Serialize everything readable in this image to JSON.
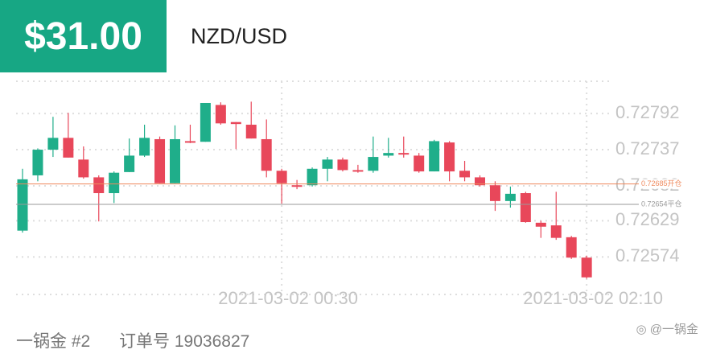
{
  "header": {
    "price": "$31.00",
    "symbol": "NZD/USD"
  },
  "footer": {
    "account": "一锅金 #2",
    "order": "订单号 19036827"
  },
  "watermark": "@一锅金",
  "chart_data": {
    "type": "candlestick",
    "categories": [
      null,
      null,
      null,
      null,
      null,
      null,
      null,
      null,
      null,
      null,
      null,
      null,
      null,
      null,
      null,
      null,
      null,
      "2021-03-02 00:30",
      null,
      null,
      null,
      null,
      null,
      null,
      null,
      null,
      null,
      null,
      null,
      null,
      null,
      null,
      null,
      null,
      null,
      null,
      null,
      "2021-03-02 02:10"
    ],
    "open": [
      0.72614,
      0.72698,
      0.72737,
      0.72755,
      0.72722,
      0.72695,
      0.72671,
      0.72703,
      0.72728,
      0.72753,
      0.72686,
      0.7275,
      0.72749,
      0.72805,
      0.72779,
      0.72775,
      0.72753,
      0.72705,
      0.72683,
      0.72683,
      0.72708,
      0.72722,
      0.72706,
      0.72705,
      0.72728,
      0.72732,
      0.72728,
      0.72704,
      0.72748,
      0.72705,
      0.72695,
      0.72683,
      0.72659,
      0.72671,
      0.72626,
      0.72622,
      0.72604,
      0.72573
    ],
    "high": [
      0.72708,
      0.72739,
      0.72787,
      0.72793,
      0.72742,
      0.72698,
      0.72704,
      0.72754,
      0.72775,
      0.72757,
      0.72774,
      0.72775,
      0.72808,
      0.72809,
      0.72779,
      0.7281,
      0.72783,
      0.72708,
      0.72691,
      0.7271,
      0.72726,
      0.72725,
      0.72714,
      0.72757,
      0.72755,
      0.72757,
      0.72732,
      0.72752,
      0.7275,
      0.7272,
      0.72698,
      0.72689,
      0.72681,
      0.72673,
      0.72629,
      0.72673,
      0.72606,
      0.72576
    ],
    "low": [
      0.72611,
      0.72689,
      0.72726,
      0.72725,
      0.72693,
      0.72628,
      0.72656,
      0.72703,
      0.72726,
      0.72686,
      0.72686,
      0.72747,
      0.72749,
      0.72775,
      0.72738,
      0.72754,
      0.72695,
      0.72655,
      0.72677,
      0.72681,
      0.72689,
      0.72704,
      0.72702,
      0.72702,
      0.72725,
      0.72725,
      0.72702,
      0.72704,
      0.72689,
      0.72689,
      0.72681,
      0.72644,
      0.72649,
      0.72626,
      0.72603,
      0.726,
      0.72571,
      0.72541
    ],
    "close": [
      0.72692,
      0.72737,
      0.72755,
      0.72725,
      0.72695,
      0.72671,
      0.72702,
      0.72728,
      0.72755,
      0.72686,
      0.72753,
      0.72749,
      0.72808,
      0.72777,
      0.72776,
      0.72754,
      0.72705,
      0.72686,
      0.72681,
      0.72708,
      0.72722,
      0.72706,
      0.72705,
      0.72726,
      0.72732,
      0.7273,
      0.72704,
      0.7275,
      0.72704,
      0.72695,
      0.72683,
      0.72659,
      0.7267,
      0.72627,
      0.7262,
      0.72603,
      0.72573,
      0.72543
    ],
    "up_color": "#1fae8a",
    "down_color": "#e8475a",
    "ylim": [
      0.72517,
      0.72841
    ],
    "yticks": [
      0.72574,
      0.72629,
      0.72682,
      0.72737,
      0.72792
    ],
    "grid": true,
    "reference_lines": [
      {
        "value": 0.72685,
        "label": "0.72685开仓",
        "color": "#ef8a5e"
      },
      {
        "value": 0.72654,
        "label": "0.72654平仓",
        "color": "#9a9a9a"
      }
    ]
  }
}
